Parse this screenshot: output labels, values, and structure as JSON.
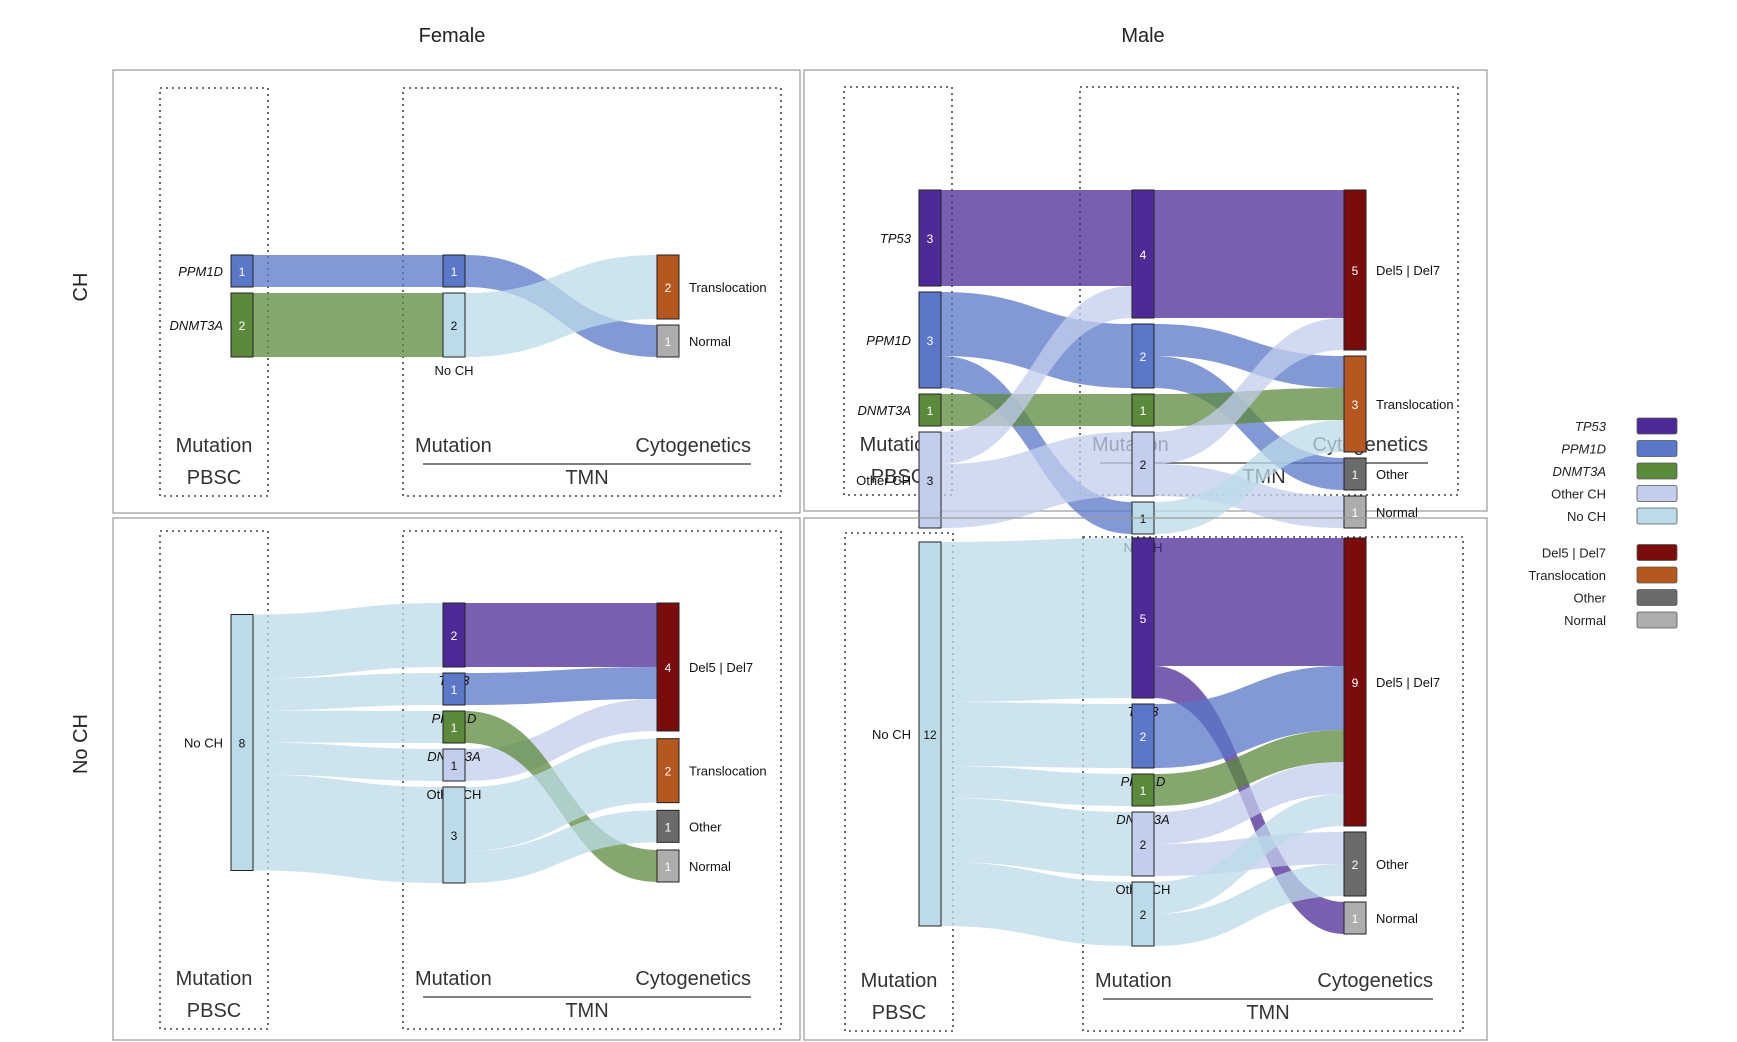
{
  "colors": {
    "TP53": "#4e2a96",
    "PPM1D": "#5a77c8",
    "DNMT3A": "#5c8a3c",
    "Other CH": "#c3cdec",
    "No CH": "#bcdbe8",
    "Del5 | Del7": "#7a0c0c",
    "Translocation": "#b5571e",
    "Other": "#6b6b6b",
    "Normal": "#adadad"
  },
  "columns": {
    "female": "Female",
    "male": "Male"
  },
  "rows": {
    "ch": "CH",
    "noch": "No CH"
  },
  "axis_labels": {
    "mutation": "Mutation",
    "cytogenetics": "Cytogenetics",
    "pbsc": "PBSC",
    "tmn": "TMN"
  },
  "legend": {
    "mutations": [
      "TP53",
      "PPM1D",
      "DNMT3A",
      "Other CH",
      "No CH"
    ],
    "cytogenetics": [
      "Del5 | Del7",
      "Translocation",
      "Other",
      "Normal"
    ],
    "italic": [
      "TP53",
      "PPM1D",
      "DNMT3A"
    ]
  },
  "panels": [
    {
      "id": "female-ch",
      "column": "Female",
      "row": "CH",
      "stages": [
        [
          {
            "name": "PPM1D",
            "count": 1
          },
          {
            "name": "DNMT3A",
            "count": 2
          }
        ],
        [
          {
            "name": "PPM1D",
            "count": 1,
            "label": ""
          },
          {
            "name": "No CH",
            "count": 2
          }
        ],
        [
          {
            "name": "Translocation",
            "count": 2
          },
          {
            "name": "Normal",
            "count": 1
          }
        ]
      ],
      "flows": [
        {
          "from": "PPM1D",
          "to": "PPM1D",
          "count": 1,
          "color": "PPM1D"
        },
        {
          "from": "DNMT3A",
          "to": "No CH",
          "count": 2,
          "color": "DNMT3A"
        },
        {
          "from": "PPM1D",
          "to": "Normal",
          "count": 1,
          "color": "PPM1D"
        },
        {
          "from": "No CH",
          "to": "Translocation",
          "count": 2,
          "color": "No CH"
        }
      ]
    },
    {
      "id": "male-ch",
      "column": "Male",
      "row": "CH",
      "stages": [
        [
          {
            "name": "TP53",
            "count": 3
          },
          {
            "name": "PPM1D",
            "count": 3
          },
          {
            "name": "DNMT3A",
            "count": 1
          },
          {
            "name": "Other CH",
            "count": 3
          }
        ],
        [
          {
            "name": "TP53",
            "count": 4,
            "label": ""
          },
          {
            "name": "PPM1D",
            "count": 2,
            "label": ""
          },
          {
            "name": "DNMT3A",
            "count": 1,
            "label": ""
          },
          {
            "name": "Other CH",
            "count": 2,
            "label": ""
          },
          {
            "name": "No CH",
            "count": 1
          }
        ],
        [
          {
            "name": "Del5 | Del7",
            "count": 5
          },
          {
            "name": "Translocation",
            "count": 3
          },
          {
            "name": "Other",
            "count": 1
          },
          {
            "name": "Normal",
            "count": 1
          }
        ]
      ],
      "flows": [
        {
          "from": "TP53",
          "to": "TP53",
          "count": 3,
          "color": "TP53"
        },
        {
          "from": "PPM1D",
          "to": "PPM1D",
          "count": 2,
          "color": "PPM1D"
        },
        {
          "from": "PPM1D",
          "to": "No CH",
          "count": 1,
          "color": "PPM1D"
        },
        {
          "from": "DNMT3A",
          "to": "DNMT3A",
          "count": 1,
          "color": "DNMT3A"
        },
        {
          "from": "Other CH",
          "to": "TP53",
          "count": 1,
          "color": "Other CH"
        },
        {
          "from": "Other CH",
          "to": "Other CH",
          "count": 2,
          "color": "Other CH"
        },
        {
          "from": "TP53",
          "to": "Del5 | Del7",
          "count": 4,
          "color": "TP53"
        },
        {
          "from": "PPM1D",
          "to": "Translocation",
          "count": 1,
          "color": "PPM1D"
        },
        {
          "from": "PPM1D",
          "to": "Other",
          "count": 1,
          "color": "PPM1D"
        },
        {
          "from": "DNMT3A",
          "to": "Translocation",
          "count": 1,
          "color": "DNMT3A"
        },
        {
          "from": "Other CH",
          "to": "Del5 | Del7",
          "count": 1,
          "color": "Other CH"
        },
        {
          "from": "Other CH",
          "to": "Normal",
          "count": 1,
          "color": "Other CH"
        },
        {
          "from": "No CH",
          "to": "Translocation",
          "count": 1,
          "color": "No CH"
        }
      ]
    },
    {
      "id": "female-noch",
      "column": "Female",
      "row": "No CH",
      "stages": [
        [
          {
            "name": "No CH",
            "count": 8
          }
        ],
        [
          {
            "name": "TP53",
            "count": 2
          },
          {
            "name": "PPM1D",
            "count": 1
          },
          {
            "name": "DNMT3A",
            "count": 1
          },
          {
            "name": "Other CH",
            "count": 1
          },
          {
            "name": "No CH",
            "count": 3,
            "label": ""
          }
        ],
        [
          {
            "name": "Del5 | Del7",
            "count": 4
          },
          {
            "name": "Translocation",
            "count": 2
          },
          {
            "name": "Other",
            "count": 1
          },
          {
            "name": "Normal",
            "count": 1
          }
        ]
      ],
      "flows": [
        {
          "from": "No CH",
          "to": "TP53",
          "count": 2,
          "color": "No CH"
        },
        {
          "from": "No CH",
          "to": "PPM1D",
          "count": 1,
          "color": "No CH"
        },
        {
          "from": "No CH",
          "to": "DNMT3A",
          "count": 1,
          "color": "No CH"
        },
        {
          "from": "No CH",
          "to": "Other CH",
          "count": 1,
          "color": "No CH"
        },
        {
          "from": "No CH",
          "to": "No CH",
          "count": 3,
          "color": "No CH"
        },
        {
          "from": "TP53",
          "to": "Del5 | Del7",
          "count": 2,
          "color": "TP53"
        },
        {
          "from": "PPM1D",
          "to": "Del5 | Del7",
          "count": 1,
          "color": "PPM1D"
        },
        {
          "from": "Other CH",
          "to": "Del5 | Del7",
          "count": 1,
          "color": "Other CH"
        },
        {
          "from": "DNMT3A",
          "to": "Normal",
          "count": 1,
          "color": "DNMT3A"
        },
        {
          "from": "No CH",
          "to": "Translocation",
          "count": 2,
          "color": "No CH"
        },
        {
          "from": "No CH",
          "to": "Other",
          "count": 1,
          "color": "No CH"
        }
      ]
    },
    {
      "id": "male-noch",
      "column": "Male",
      "row": "No CH",
      "stages": [
        [
          {
            "name": "No CH",
            "count": 12
          }
        ],
        [
          {
            "name": "TP53",
            "count": 5
          },
          {
            "name": "PPM1D",
            "count": 2
          },
          {
            "name": "DNMT3A",
            "count": 1
          },
          {
            "name": "Other CH",
            "count": 2
          },
          {
            "name": "No CH",
            "count": 2,
            "label": ""
          }
        ],
        [
          {
            "name": "Del5 | Del7",
            "count": 9
          },
          {
            "name": "Other",
            "count": 2
          },
          {
            "name": "Normal",
            "count": 1
          }
        ]
      ],
      "flows": [
        {
          "from": "No CH",
          "to": "TP53",
          "count": 5,
          "color": "No CH"
        },
        {
          "from": "No CH",
          "to": "PPM1D",
          "count": 2,
          "color": "No CH"
        },
        {
          "from": "No CH",
          "to": "DNMT3A",
          "count": 1,
          "color": "No CH"
        },
        {
          "from": "No CH",
          "to": "Other CH",
          "count": 2,
          "color": "No CH"
        },
        {
          "from": "No CH",
          "to": "No CH",
          "count": 2,
          "color": "No CH"
        },
        {
          "from": "TP53",
          "to": "Del5 | Del7",
          "count": 4,
          "color": "TP53"
        },
        {
          "from": "TP53",
          "to": "Normal",
          "count": 1,
          "color": "TP53"
        },
        {
          "from": "PPM1D",
          "to": "Del5 | Del7",
          "count": 2,
          "color": "PPM1D"
        },
        {
          "from": "DNMT3A",
          "to": "Del5 | Del7",
          "count": 1,
          "color": "DNMT3A"
        },
        {
          "from": "Other CH",
          "to": "Del5 | Del7",
          "count": 1,
          "color": "Other CH"
        },
        {
          "from": "Other CH",
          "to": "Other",
          "count": 1,
          "color": "Other CH"
        },
        {
          "from": "No CH",
          "to": "Del5 | Del7",
          "count": 1,
          "color": "No CH"
        },
        {
          "from": "No CH",
          "to": "Other",
          "count": 1,
          "color": "No CH"
        }
      ]
    }
  ]
}
